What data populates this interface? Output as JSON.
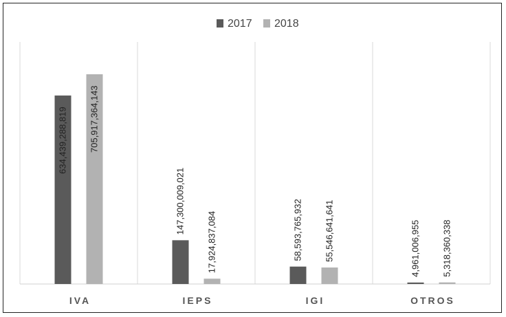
{
  "chart_data": {
    "type": "bar",
    "title": "",
    "xlabel": "",
    "ylabel": "",
    "categories": [
      "IVA",
      "IEPS",
      "IGI",
      "OTROS"
    ],
    "series": [
      {
        "name": "2017",
        "color": "#5a5a5a",
        "values": [
          634439288819,
          147300009021,
          58593765932,
          4961006955
        ],
        "labels": [
          "634,439,288,819",
          "147,300,009,021",
          "58,593,765,932",
          "4,961,006,955"
        ]
      },
      {
        "name": "2018",
        "color": "#b2b2b2",
        "values": [
          705917364143,
          17924837084,
          55546641641,
          5318360338
        ],
        "labels": [
          "705,917,364,143",
          "17,924,837,084",
          "55,546,641,641",
          "5,318,360,338"
        ]
      }
    ],
    "ylim": [
      0,
      800000000000
    ],
    "y_axis_visible": false,
    "grid": "vertical category separators",
    "legend_position": "top-center",
    "data_labels": "vertical, inside/above bars"
  }
}
